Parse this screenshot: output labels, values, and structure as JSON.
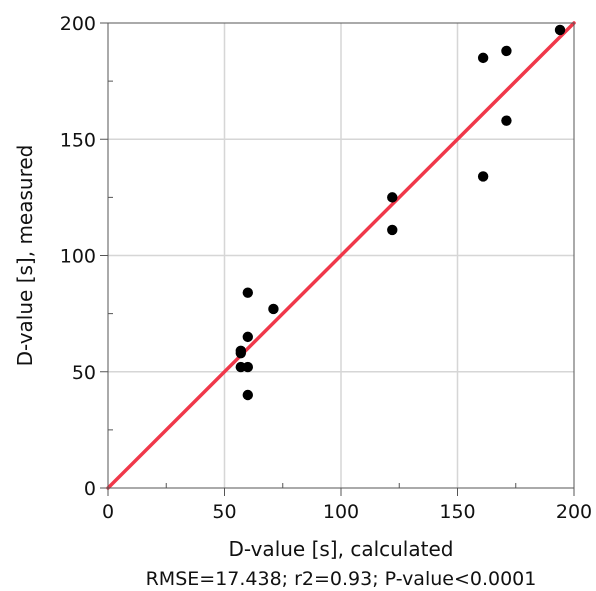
{
  "chart_data": {
    "type": "scatter",
    "title": "",
    "xlabel": "D-value [s], calculated",
    "ylabel": "D-value [s], measured",
    "caption": "RMSE=17.438; r2=0.93; P-value<0.0001",
    "xlim": [
      0,
      200
    ],
    "ylim": [
      0,
      200
    ],
    "xticks": [
      0,
      50,
      100,
      150,
      200
    ],
    "yticks": [
      0,
      50,
      100,
      150,
      200
    ],
    "xtick_labels": [
      "0",
      "50",
      "100",
      "150",
      "200"
    ],
    "ytick_labels": [
      "0",
      "50",
      "100",
      "150",
      "200"
    ],
    "grid": true,
    "legend": "none",
    "point_color": "#000000",
    "line_color": "#f0384a",
    "reference_line": {
      "x": [
        0,
        200
      ],
      "y": [
        0,
        200
      ]
    },
    "points": [
      {
        "x": 194,
        "y": 197
      },
      {
        "x": 161,
        "y": 185
      },
      {
        "x": 171,
        "y": 188
      },
      {
        "x": 171,
        "y": 158
      },
      {
        "x": 161,
        "y": 134
      },
      {
        "x": 122,
        "y": 125
      },
      {
        "x": 122,
        "y": 111
      },
      {
        "x": 60,
        "y": 84
      },
      {
        "x": 71,
        "y": 77
      },
      {
        "x": 60,
        "y": 65
      },
      {
        "x": 57,
        "y": 59
      },
      {
        "x": 57,
        "y": 58
      },
      {
        "x": 57,
        "y": 52
      },
      {
        "x": 60,
        "y": 52
      },
      {
        "x": 60,
        "y": 40
      }
    ]
  }
}
